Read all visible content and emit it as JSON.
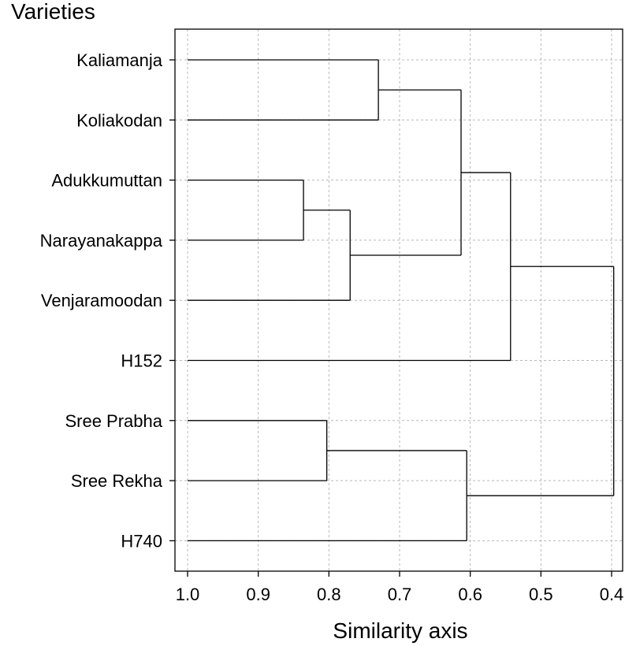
{
  "chart_data": {
    "type": "dendrogram",
    "title": "Varieties",
    "xlabel": "Similarity axis",
    "xlim": [
      1.0,
      0.4
    ],
    "x_ticks": [
      "1.0",
      "0.9",
      "0.8",
      "0.7",
      "0.6",
      "0.5",
      "0.4"
    ],
    "grid": true,
    "leaves": [
      "Kaliamanja",
      "Koliakodan",
      "Adukkumuttan",
      "Narayanakappa",
      "Venjaramoodan",
      "H152",
      "Sree Prabha",
      "Sree Rekha",
      "H740"
    ],
    "merges": [
      {
        "left": "Kaliamanja",
        "right": "Koliakodan",
        "similarity": 0.73
      },
      {
        "left": "Adukkumuttan",
        "right": "Narayanakappa",
        "similarity": 0.836
      },
      {
        "left": "Adukkumuttan+Narayanakappa",
        "right": "Venjaramoodan",
        "similarity": 0.77
      },
      {
        "left": "Kaliamanja+Koliakodan",
        "right": "Adukkumuttan+Narayanakappa+Venjaramoodan",
        "similarity": 0.613
      },
      {
        "left": "Kaliamanja+Koliakodan+Adukkumuttan+Narayanakappa+Venjaramoodan",
        "right": "H152",
        "similarity": 0.543
      },
      {
        "left": "Sree Prabha",
        "right": "Sree Rekha",
        "similarity": 0.803
      },
      {
        "left": "Sree Prabha+Sree Rekha",
        "right": "H740",
        "similarity": 0.605
      },
      {
        "left": "Kaliamanja+Koliakodan+Adukkumuttan+Narayanakappa+Venjaramoodan+H152",
        "right": "Sree Prabha+Sree Rekha+H740",
        "similarity": 0.397
      }
    ]
  }
}
